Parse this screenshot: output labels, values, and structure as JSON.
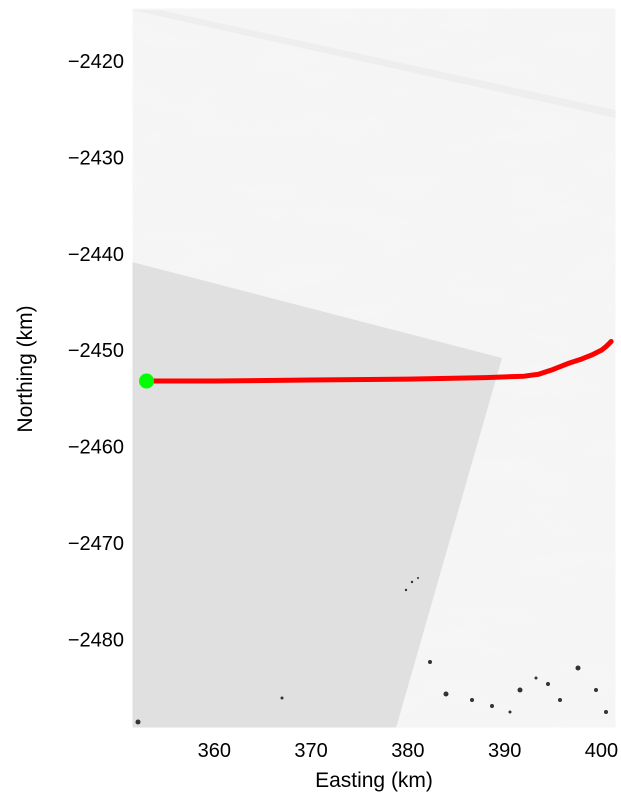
{
  "chart_data": {
    "type": "line",
    "title": "",
    "xlabel": "Easting (km)",
    "ylabel": "Northing (km)",
    "xlim": [
      351.5,
      401.5
    ],
    "ylim": [
      -2489.2,
      -2414.5
    ],
    "xticks": [
      360,
      370,
      380,
      390,
      400
    ],
    "yticks": [
      -2420,
      -2430,
      -2440,
      -2450,
      -2460,
      -2470,
      -2480
    ],
    "xtick_labels": [
      "360",
      "370",
      "380",
      "390",
      "400"
    ],
    "ytick_labels": [
      "−2420",
      "−2430",
      "−2440",
      "−2450",
      "−2460",
      "−2470",
      "−2480"
    ],
    "grid": false,
    "background": "grayscale satellite imagery of ice surface",
    "series": [
      {
        "color": "#ff0000",
        "x": [
          353.0,
          360.0,
          370.0,
          380.0,
          388.0,
          392.0,
          393.5,
          395.0,
          396.5,
          398.0,
          399.0,
          400.0,
          400.5,
          401.0
        ],
        "y": [
          -2453.2,
          -2453.2,
          -2453.1,
          -2453.0,
          -2452.85,
          -2452.7,
          -2452.5,
          -2452.0,
          -2451.4,
          -2450.9,
          -2450.5,
          -2450.0,
          -2449.6,
          -2449.1
        ]
      }
    ],
    "markers": [
      {
        "color": "#00ff00",
        "shape": "circle",
        "x": 353.0,
        "y": -2453.2
      }
    ]
  }
}
